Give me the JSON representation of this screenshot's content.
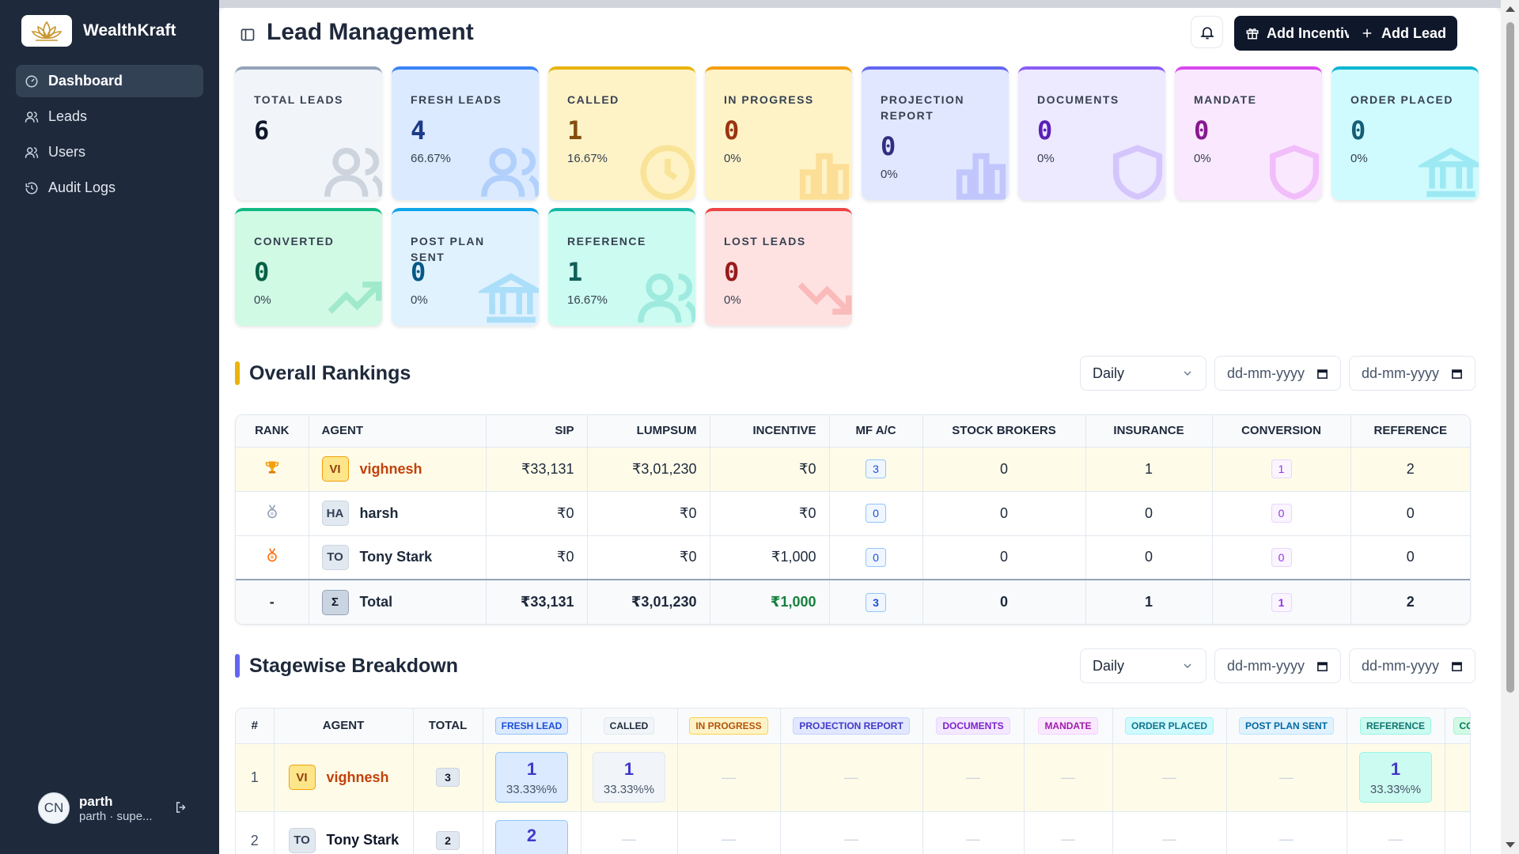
{
  "brand": {
    "name": "WealthKraft"
  },
  "sidebar": {
    "items": [
      {
        "label": "Dashboard",
        "icon": "gauge-icon"
      },
      {
        "label": "Leads",
        "icon": "users-icon"
      },
      {
        "label": "Users",
        "icon": "users-icon"
      },
      {
        "label": "Audit Logs",
        "icon": "history-icon"
      }
    ],
    "user": {
      "initials": "CN",
      "name": "parth",
      "sub": "parth · supe..."
    }
  },
  "header": {
    "title": "Lead Management",
    "add_incentive_label": "Add Incentive",
    "add_lead_label": "Add Lead"
  },
  "stats": [
    {
      "label": "TOTAL LEADS",
      "value": "6",
      "pct": "",
      "color": "#f1f5f9",
      "border": "#94a3b8",
      "text": "#0f172a",
      "icon": "users"
    },
    {
      "label": "FRESH LEADS",
      "value": "4",
      "pct": "66.67%",
      "color": "#dbeafe",
      "border": "#3b82f6",
      "text": "#1e3a8a",
      "icon": "users"
    },
    {
      "label": "CALLED",
      "value": "1",
      "pct": "16.67%",
      "color": "#fef3c7",
      "border": "#eab308",
      "text": "#854d0e",
      "icon": "clock"
    },
    {
      "label": "IN PROGRESS",
      "value": "0",
      "pct": "0%",
      "color": "#fef3c7",
      "border": "#f59e0b",
      "text": "#9a3412",
      "icon": "chart"
    },
    {
      "label": "PROJECTION REPORT",
      "value": "0",
      "pct": "0%",
      "color": "#e0e7ff",
      "border": "#6366f1",
      "text": "#312e81",
      "icon": "chart"
    },
    {
      "label": "DOCUMENTS",
      "value": "0",
      "pct": "0%",
      "color": "#ede9fe",
      "border": "#8b5cf6",
      "text": "#5b21b6",
      "icon": "shield"
    },
    {
      "label": "MANDATE",
      "value": "0",
      "pct": "0%",
      "color": "#fae8ff",
      "border": "#d946ef",
      "text": "#86198f",
      "icon": "shield"
    },
    {
      "label": "ORDER PLACED",
      "value": "0",
      "pct": "0%",
      "color": "#cffafe",
      "border": "#06b6d4",
      "text": "#155e75",
      "icon": "bank"
    },
    {
      "label": "CONVERTED",
      "value": "0",
      "pct": "0%",
      "color": "#d1fae5",
      "border": "#10b981",
      "text": "#065f46",
      "icon": "trend-up"
    },
    {
      "label": "POST PLAN SENT",
      "value": "0",
      "pct": "0%",
      "color": "#e0f2fe",
      "border": "#0ea5e9",
      "text": "#075985",
      "icon": "bank"
    },
    {
      "label": "REFERENCE",
      "value": "1",
      "pct": "16.67%",
      "color": "#ccfbf1",
      "border": "#14b8a6",
      "text": "#115e59",
      "icon": "users"
    },
    {
      "label": "LOST LEADS",
      "value": "0",
      "pct": "0%",
      "color": "#fee2e2",
      "border": "#ef4444",
      "text": "#991b1b",
      "icon": "trend-down"
    }
  ],
  "rankings": {
    "title": "Overall Rankings",
    "period": "Daily",
    "date_from_placeholder": "dd-mm-yyyy",
    "date_to_placeholder": "dd-mm-yyyy",
    "columns": [
      "RANK",
      "AGENT",
      "SIP",
      "LUMPSUM",
      "INCENTIVE",
      "MF A/C",
      "STOCK BROKERS",
      "INSURANCE",
      "CONVERSION",
      "REFERENCE"
    ],
    "rows": [
      {
        "initials": "VI",
        "agent": "vighnesh",
        "sip": "₹33,131",
        "lumpsum": "₹3,01,230",
        "incentive": "₹0",
        "mf": "3",
        "stock": "0",
        "insurance": "1",
        "conversion": "1",
        "reference": "2"
      },
      {
        "initials": "HA",
        "agent": "harsh",
        "sip": "₹0",
        "lumpsum": "₹0",
        "incentive": "₹0",
        "mf": "0",
        "stock": "0",
        "insurance": "0",
        "conversion": "0",
        "reference": "0"
      },
      {
        "initials": "TO",
        "agent": "Tony Stark",
        "sip": "₹0",
        "lumpsum": "₹0",
        "incentive": "₹1,000",
        "mf": "0",
        "stock": "0",
        "insurance": "0",
        "conversion": "0",
        "reference": "0"
      }
    ],
    "total": {
      "rank": "-",
      "initials": "Σ",
      "agent": "Total",
      "sip": "₹33,131",
      "lumpsum": "₹3,01,230",
      "incentive": "₹1,000",
      "mf": "3",
      "stock": "0",
      "insurance": "1",
      "conversion": "1",
      "reference": "2"
    }
  },
  "stagewise": {
    "title": "Stagewise Breakdown",
    "period": "Daily",
    "date_from_placeholder": "dd-mm-yyyy",
    "date_to_placeholder": "dd-mm-yyyy",
    "col_hash": "#",
    "col_agent": "AGENT",
    "col_total": "TOTAL",
    "stages": [
      "FRESH LEAD",
      "CALLED",
      "IN PROGRESS",
      "PROJECTION REPORT",
      "DOCUMENTS",
      "MANDATE",
      "ORDER PLACED",
      "POST PLAN SENT",
      "REFERENCE",
      "CO"
    ],
    "rows": [
      {
        "num": "1",
        "initials": "VI",
        "agent": "vighnesh",
        "total": "3",
        "fresh": {
          "v": "1",
          "p": "33.33%%"
        },
        "called": {
          "v": "1",
          "p": "33.33%%"
        },
        "reference": {
          "v": "1",
          "p": "33.33%%"
        }
      },
      {
        "num": "2",
        "initials": "TO",
        "agent": "Tony Stark",
        "total": "2",
        "fresh": {
          "v": "2",
          "p": ""
        }
      }
    ],
    "dash": "—"
  }
}
